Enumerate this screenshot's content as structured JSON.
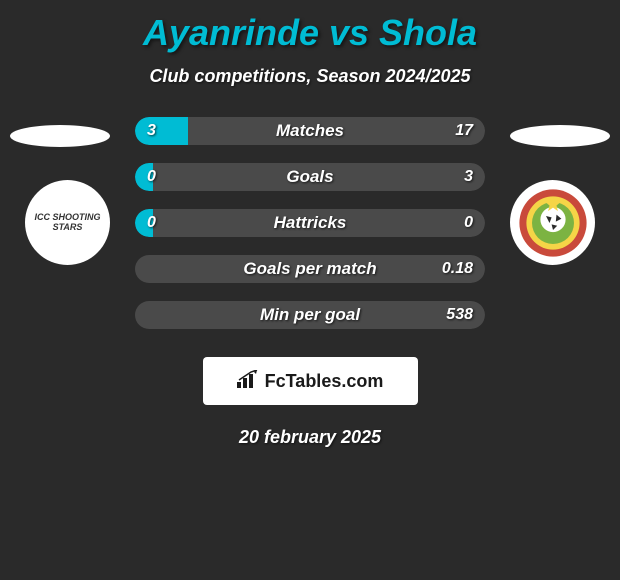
{
  "title": "Ayanrinde vs Shola",
  "subtitle": "Club competitions, Season 2024/2025",
  "date": "20 february 2025",
  "logo_text": "FcTables.com",
  "colors": {
    "background": "#2a2a2a",
    "title": "#00bcd4",
    "text": "#ffffff",
    "bar_left": "#00bcd4",
    "bar_right": "#4a4a4a",
    "badge_bg": "#ffffff"
  },
  "badges": {
    "left_label": "ICC SHOOTING STARS",
    "right_colors": {
      "outer": "#c94a3b",
      "inner": "#7cb342",
      "accent": "#f5d547"
    }
  },
  "stats": [
    {
      "label": "Matches",
      "left_value": "3",
      "right_value": "17",
      "left_pct": 15,
      "left_color": "#00bcd4",
      "right_color": "#4a4a4a"
    },
    {
      "label": "Goals",
      "left_value": "0",
      "right_value": "3",
      "left_pct": 5,
      "left_color": "#00bcd4",
      "right_color": "#4a4a4a"
    },
    {
      "label": "Hattricks",
      "left_value": "0",
      "right_value": "0",
      "left_pct": 5,
      "left_color": "#00bcd4",
      "right_color": "#4a4a4a"
    },
    {
      "label": "Goals per match",
      "left_value": "",
      "right_value": "0.18",
      "left_pct": 0,
      "left_color": "#00bcd4",
      "right_color": "#4a4a4a"
    },
    {
      "label": "Min per goal",
      "left_value": "",
      "right_value": "538",
      "left_pct": 0,
      "left_color": "#00bcd4",
      "right_color": "#4a4a4a"
    }
  ]
}
